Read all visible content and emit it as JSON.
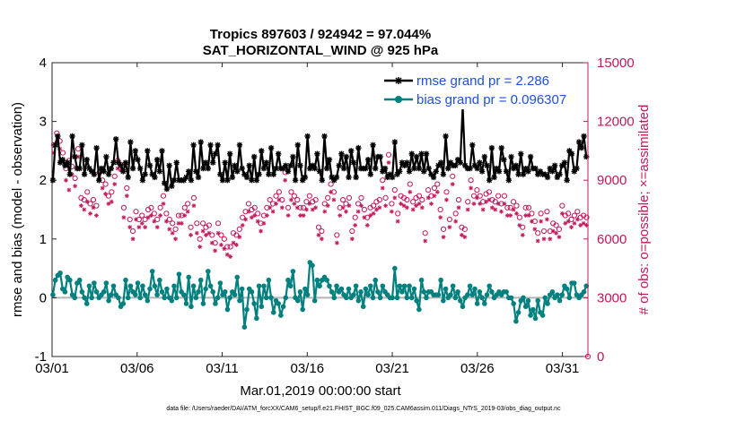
{
  "chart_data": {
    "type": "line",
    "title_line1": "Tropics 897603 / 924942 = 97.044%",
    "title_line2": "SAT_HORIZONTAL_WIND @ 925 hPa",
    "xlabel": "Mar.01,2019 00:00:00 start",
    "ylabel_left": "rmse and bias (model - observation)",
    "ylabel_right": "# of obs: o=possible; ×=assimilated",
    "x_tick_labels": [
      "03/01",
      "03/06",
      "03/11",
      "03/16",
      "03/21",
      "03/26",
      "03/31"
    ],
    "x_tick_days": [
      0,
      5,
      10,
      15,
      20,
      25,
      30
    ],
    "xlim": [
      0,
      31.5
    ],
    "ylim_left": [
      -1,
      4
    ],
    "y_ticks_left": [
      "-1",
      "0",
      "1",
      "2",
      "3",
      "4"
    ],
    "ylim_right": [
      0,
      15000
    ],
    "y_ticks_right": [
      "0",
      "3000",
      "6000",
      "9000",
      "12000",
      "15000"
    ],
    "colors": {
      "rmse": "#000000",
      "bias": "#00807e",
      "obs": "#c2185b",
      "zero_line": "#b3b3b3",
      "legend_text": "#1f4fe0"
    },
    "series": [
      {
        "name": "rmse grand pr = 2.286",
        "axis": "left",
        "values": [
          2.0,
          2.6,
          2.75,
          2.3,
          2.35,
          2.25,
          2.3,
          2.1,
          2.75,
          2.4,
          2.2,
          2.2,
          2.6,
          2.1,
          2.35,
          2.2,
          2.15,
          2.1,
          2.55,
          2.0,
          2.2,
          2.15,
          2.4,
          2.1,
          2.2,
          2.3,
          2.7,
          2.3,
          2.25,
          2.15,
          2.3,
          2.05,
          2.65,
          2.2,
          2.5,
          2.35,
          2.2,
          2.0,
          2.1,
          2.5,
          2.25,
          2.1,
          2.05,
          2.35,
          2.15,
          2.5,
          1.95,
          1.85,
          2.25,
          1.9,
          2.0,
          2.3,
          2.0,
          2.0,
          2.0,
          2.05,
          2.15,
          2.0,
          2.6,
          2.15,
          2.05,
          2.65,
          2.2,
          2.3,
          2.2,
          2.6,
          2.3,
          2.45,
          2.6,
          2.1,
          2.0,
          2.3,
          2.0,
          2.45,
          2.05,
          2.25,
          2.15,
          2.6,
          2.2,
          2.1,
          2.05,
          2.25,
          2.0,
          2.4,
          2.0,
          2.1,
          2.5,
          2.2,
          2.3,
          2.1,
          2.55,
          2.1,
          2.2,
          2.45,
          2.2,
          2.2,
          2.25,
          2.15,
          2.25,
          2.4,
          2.0,
          2.6,
          2.25,
          2.0,
          2.05,
          2.75,
          2.2,
          2.25,
          2.2,
          2.45,
          2.15,
          2.0,
          2.75,
          2.2,
          2.35,
          2.05,
          2.0,
          2.05,
          2.25,
          2.45,
          2.2,
          2.4,
          2.05,
          2.5,
          2.3,
          2.05,
          2.55,
          2.2,
          2.2,
          2.2,
          2.35,
          2.1,
          2.6,
          2.2,
          2.4,
          2.4,
          2.15,
          2.2,
          2.05,
          2.1,
          2.05,
          2.65,
          2.1,
          2.15,
          2.3,
          2.25,
          2.3,
          2.15,
          2.45,
          2.2,
          2.4,
          2.2,
          2.45,
          2.15,
          2.45,
          2.2,
          2.1,
          2.05,
          2.15,
          2.25,
          2.3,
          2.1,
          2.75,
          2.2,
          2.3,
          2.25,
          2.25,
          2.35,
          2.3,
          3.25,
          2.25,
          2.2,
          2.2,
          2.6,
          2.25,
          2.2,
          2.3,
          2.15,
          2.4,
          2.25,
          2.0,
          2.55,
          2.05,
          2.2,
          2.15,
          2.55,
          2.35,
          2.15,
          2.0,
          2.4,
          2.2,
          2.25,
          2.1,
          2.45,
          2.1,
          2.2,
          2.15,
          2.4,
          2.2,
          2.2,
          2.1,
          2.15,
          2.1,
          2.1,
          2.05,
          2.2,
          2.15,
          2.25,
          2.05,
          2.1,
          2.25,
          2.3,
          2.0,
          2.5,
          2.45,
          2.15,
          2.2,
          2.65,
          2.55,
          2.75,
          2.4
        ]
      },
      {
        "name": "bias grand pr = 0.096307",
        "axis": "left",
        "values": [
          0.05,
          0.3,
          0.38,
          0.42,
          0.15,
          0.1,
          0.35,
          0.3,
          0.05,
          0.0,
          0.25,
          0.3,
          0.1,
          0.0,
          -0.1,
          0.2,
          0.0,
          0.25,
          0.1,
          0.0,
          0.05,
          0.1,
          0.25,
          -0.05,
          0.05,
          0.2,
          0.05,
          0.0,
          -0.15,
          -0.1,
          0.3,
          0.0,
          0.2,
          0.1,
          0.05,
          0.25,
          0.0,
          0.2,
          0.05,
          -0.05,
          0.15,
          0.45,
          0.2,
          0.05,
          0.3,
          0.1,
          0.0,
          0.15,
          0.0,
          -0.05,
          0.2,
          0.0,
          0.4,
          0.1,
          0.05,
          -0.1,
          0.35,
          -0.15,
          0.2,
          0.0,
          0.1,
          0.3,
          -0.1,
          0.15,
          0.45,
          0.2,
          0.1,
          -0.1,
          0.0,
          0.25,
          0.05,
          0.1,
          -0.2,
          0.0,
          0.1,
          0.05,
          0.35,
          -0.05,
          0.15,
          -0.5,
          -0.2,
          0.15,
          0.1,
          -0.1,
          -0.35,
          0.2,
          -0.15,
          0.2,
          0.0,
          0.3,
          0.0,
          -0.25,
          -0.05,
          -0.1,
          -0.3,
          -0.15,
          0.0,
          0.3,
          0.2,
          0.45,
          0.0,
          -0.05,
          0.1,
          -0.2,
          0.15,
          0.05,
          0.6,
          0.55,
          -0.05,
          0.3,
          0.2,
          0.3,
          0.35,
          0.3,
          0.2,
          0.1,
          0.0,
          0.2,
          0.1,
          0.15,
          0.05,
          0.0,
          0.15,
          0.0,
          0.05,
          0.2,
          -0.05,
          0.1,
          -0.15,
          0.15,
          0.05,
          0.2,
          0.0,
          0.3,
          0.1,
          0.0,
          0.2,
          0.1,
          0.05,
          0.0,
          0.0,
          0.5,
          0.0,
          0.2,
          0.1,
          0.2,
          0.0,
          0.2,
          0.0,
          0.15,
          -0.05,
          -0.2,
          0.3,
          0.1,
          0.0,
          0.1,
          0.1,
          0.05,
          0.05,
          0.05,
          0.3,
          -0.05,
          0.15,
          0.0,
          0.05,
          0.2,
          0.0,
          0.1,
          -0.05,
          -0.15,
          0.0,
          0.05,
          0.2,
          0.05,
          0.15,
          -0.1,
          0.1,
          0.0,
          -0.1,
          0.05,
          0.2,
          0.1,
          0.0,
          0.05,
          0.1,
          0.05,
          0.1,
          0.1,
          0.0,
          0.0,
          -0.1,
          -0.4,
          -0.25,
          -0.05,
          0.0,
          -0.15,
          -0.05,
          -0.3,
          -0.2,
          -0.35,
          -0.05,
          -0.25,
          -0.3,
          0.0,
          -0.1,
          0.05,
          0.1,
          0.0,
          0.05,
          -0.05,
          0.05,
          0.2,
          0.15,
          0.0,
          0.25,
          0.25,
          0.05,
          0.0,
          0.05,
          0.1,
          0.2
        ]
      },
      {
        "name": "possible",
        "axis": "right",
        "marker": "o",
        "values": [
          10800,
          11400,
          11000,
          10400,
          9600,
          10000,
          9700,
          9100,
          10600,
          8100,
          8000,
          8400,
          7800,
          8000,
          7700,
          9400,
          9000,
          8800,
          8200,
          8400,
          9200,
          10000,
          9800,
          7600,
          8600,
          7000,
          6400,
          7400,
          7000,
          7200,
          7000,
          7500,
          7600,
          7300,
          7000,
          7600,
          8200,
          7300,
          7000,
          6800,
          6500,
          7200,
          7200,
          7600,
          7800,
          6600,
          8100,
          6800,
          6000,
          6800,
          6600,
          6700,
          6200,
          5800,
          6800,
          6200,
          6000,
          5600,
          5600,
          6300,
          6200,
          6500,
          7100,
          7400,
          7800,
          7500,
          7600,
          7300,
          6800,
          7200,
          7600,
          8000,
          7800,
          8200,
          8400,
          8000,
          9400,
          7600,
          8400,
          8200,
          8000,
          7600,
          7600,
          7900,
          8200,
          7900,
          8000,
          6600,
          6400,
          7800,
          8100,
          8800,
          8400,
          6200,
          7600,
          8000,
          7800,
          8100,
          6400,
          7100,
          7800,
          8100,
          7500,
          7100,
          7600,
          7700,
          7900,
          8000,
          9000,
          8100,
          10300,
          7800,
          8500,
          7300,
          8200,
          8100,
          8000,
          8800,
          7900,
          8100,
          8200,
          8000,
          6300,
          8500,
          8200,
          8600,
          8800,
          7500,
          6500,
          8400,
          7000,
          9200,
          7300,
          8000,
          6600,
          6500,
          7900,
          9000,
          8200,
          8500,
          8200,
          7900,
          8300,
          8400,
          8000,
          7900,
          8200,
          7800,
          8200,
          7600,
          7600,
          7900,
          7700,
          7100,
          6600,
          7600,
          7600,
          7300,
          6900,
          6300,
          7300,
          6400,
          7400,
          6400,
          6800,
          6700,
          6500,
          7700,
          7200,
          7300,
          7000,
          7200,
          7400,
          7100,
          7200,
          7100
        ]
      },
      {
        "name": "assimilated",
        "axis": "right",
        "marker": "x",
        "values": [
          10400,
          11000,
          10600,
          10000,
          9000,
          8500,
          9300,
          8700,
          10200,
          7700,
          7500,
          7900,
          7300,
          7600,
          7200,
          9000,
          8600,
          8300,
          7800,
          7900,
          8800,
          9600,
          9500,
          7100,
          8200,
          6600,
          6000,
          7000,
          6600,
          6800,
          6600,
          7100,
          7200,
          6900,
          6600,
          7200,
          7800,
          6900,
          6500,
          6300,
          6000,
          6800,
          6800,
          7200,
          7400,
          6200,
          7700,
          6300,
          5600,
          6400,
          6200,
          6300,
          5800,
          5400,
          6300,
          5700,
          5500,
          5200,
          5100,
          5800,
          5700,
          6100,
          6700,
          7000,
          7400,
          7100,
          7200,
          6900,
          6400,
          6800,
          7200,
          7600,
          7400,
          7800,
          8000,
          7600,
          9000,
          7200,
          8000,
          7800,
          7600,
          7200,
          7200,
          7500,
          7800,
          7500,
          7600,
          6200,
          6000,
          7400,
          7700,
          8400,
          8000,
          5800,
          7200,
          7600,
          7400,
          7700,
          6000,
          6700,
          7400,
          7700,
          7100,
          6700,
          7200,
          7300,
          7500,
          7600,
          8600,
          7700,
          9900,
          7400,
          8100,
          6900,
          7800,
          7700,
          7600,
          8400,
          7500,
          7700,
          7800,
          7600,
          5900,
          8100,
          7800,
          8200,
          8400,
          7100,
          6100,
          8000,
          6600,
          8800,
          6900,
          7600,
          6200,
          6100,
          7500,
          8600,
          7800,
          8100,
          7800,
          7500,
          7900,
          8000,
          7600,
          7500,
          7800,
          7400,
          7800,
          7200,
          7200,
          7500,
          7300,
          6700,
          6200,
          7200,
          7200,
          6900,
          6500,
          5900,
          6900,
          6000,
          7000,
          6000,
          6400,
          6300,
          6100,
          7300,
          6800,
          6900,
          6600,
          6800,
          7000,
          6700,
          6800,
          6700
        ]
      }
    ],
    "footer": "data file: /Users/raeder/DAI/ATM_forcXX/CAM6_setup/f.e21.FHIST_BGC.f09_025.CAM6assim.011/Diags_NTrS_2019-03/obs_diag_output.nc"
  }
}
